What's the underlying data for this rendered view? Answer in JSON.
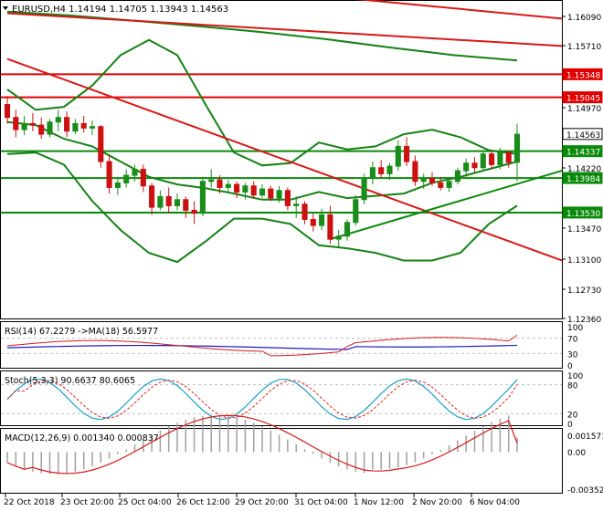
{
  "colors": {
    "bull": "#1a8c1a",
    "bear": "#cc1111",
    "grid_frame": "#000000",
    "hline_red": "#e00000",
    "hline_green": "#0a8a0a",
    "bollinger": "#148214",
    "trend": "#d81818",
    "rsi": "#1c1cc8",
    "rsi_ma": "#d81818",
    "stoch_main": "#1aa0c8",
    "stoch_signal": "#e02020",
    "macd_hist": "#a0a0a0",
    "macd_signal": "#d81818",
    "label_green_bg": "#0a8a0a",
    "label_red_bg": "#e00000",
    "current_bg": "#ffffff"
  },
  "main_header": "EURUSD,H4  1.14194 1.14705 1.13943 1.14563",
  "rsi_header": "RSI(14) 67.2279  ->MA(18) 56.5977",
  "stoch_header": "Stoch(5,3,3) 90.6637 80.6065",
  "macd_header": "MACD(12,26,9) 0.001340 0.000837",
  "price_axis": {
    "ticks": [
      "1.16090",
      "1.15710",
      "1.14970",
      "1.14220",
      "1.13470",
      "1.13100",
      "1.12730",
      "1.12360"
    ],
    "markers": [
      {
        "label": "1.15348",
        "kind": "red"
      },
      {
        "label": "1.15045",
        "kind": "red"
      },
      {
        "label": "1.14563",
        "kind": "current"
      },
      {
        "label": "1.14337",
        "kind": "green"
      },
      {
        "label": "1.13984",
        "kind": "green"
      },
      {
        "label": "1.13530",
        "kind": "green"
      }
    ]
  },
  "rsi_axis": [
    "100",
    "70",
    "30",
    "0"
  ],
  "stoch_axis": [
    "100",
    "80",
    "20",
    "0"
  ],
  "macd_axis": [
    "0.001571",
    "0.00",
    "-0.003525"
  ],
  "time_axis": [
    "22 Oct 2018",
    "23 Oct 20:00",
    "25 Oct 04:00",
    "26 Oct 12:00",
    "29 Oct 20:00",
    "31 Oct 04:00",
    "1 Nov 12:00",
    "2 Nov 20:00",
    "6 Nov 04:00"
  ],
  "chart_data": {
    "type": "candlestick",
    "symbol": "EURUSD",
    "timeframe": "H4",
    "ylim": [
      1.1215,
      1.163
    ],
    "candles": [
      [
        1.1495,
        1.1506,
        1.147,
        1.1478
      ],
      [
        1.1478,
        1.1488,
        1.1452,
        1.1462
      ],
      [
        1.1462,
        1.148,
        1.1455,
        1.147
      ],
      [
        1.147,
        1.1484,
        1.146,
        1.1468
      ],
      [
        1.1468,
        1.1478,
        1.145,
        1.1456
      ],
      [
        1.1456,
        1.1476,
        1.1452,
        1.1472
      ],
      [
        1.1472,
        1.1488,
        1.146,
        1.1478
      ],
      [
        1.1478,
        1.1486,
        1.1452,
        1.146
      ],
      [
        1.146,
        1.1476,
        1.1456,
        1.147
      ],
      [
        1.147,
        1.148,
        1.1458,
        1.1464
      ],
      [
        1.1464,
        1.1474,
        1.1455,
        1.1466
      ],
      [
        1.1466,
        1.1468,
        1.1412,
        1.142
      ],
      [
        1.142,
        1.143,
        1.1378,
        1.1386
      ],
      [
        1.1386,
        1.14,
        1.1376,
        1.1392
      ],
      [
        1.1392,
        1.141,
        1.1386,
        1.1402
      ],
      [
        1.1402,
        1.1416,
        1.1394,
        1.141
      ],
      [
        1.141,
        1.1416,
        1.138,
        1.1388
      ],
      [
        1.1388,
        1.1392,
        1.135,
        1.136
      ],
      [
        1.136,
        1.1382,
        1.1356,
        1.1374
      ],
      [
        1.1374,
        1.1386,
        1.1352,
        1.1362
      ],
      [
        1.1362,
        1.1378,
        1.1356,
        1.137
      ],
      [
        1.137,
        1.1374,
        1.1346,
        1.1356
      ],
      [
        1.1356,
        1.1368,
        1.1338,
        1.1352
      ],
      [
        1.1352,
        1.14,
        1.1348,
        1.1394
      ],
      [
        1.1394,
        1.141,
        1.1386,
        1.1396
      ],
      [
        1.1396,
        1.1402,
        1.1378,
        1.1386
      ],
      [
        1.1386,
        1.1396,
        1.1378,
        1.139
      ],
      [
        1.139,
        1.1394,
        1.1372,
        1.138
      ],
      [
        1.138,
        1.1392,
        1.137,
        1.1388
      ],
      [
        1.1388,
        1.1394,
        1.1372,
        1.1376
      ],
      [
        1.1376,
        1.139,
        1.1372,
        1.1384
      ],
      [
        1.1384,
        1.1388,
        1.1368,
        1.1372
      ],
      [
        1.1372,
        1.1388,
        1.1366,
        1.1382
      ],
      [
        1.1382,
        1.1386,
        1.1356,
        1.1362
      ],
      [
        1.1362,
        1.1374,
        1.1346,
        1.1364
      ],
      [
        1.1364,
        1.1368,
        1.1338,
        1.1344
      ],
      [
        1.1344,
        1.1352,
        1.1328,
        1.1336
      ],
      [
        1.1336,
        1.1358,
        1.133,
        1.135
      ],
      [
        1.135,
        1.1362,
        1.1312,
        1.1318
      ],
      [
        1.1318,
        1.133,
        1.1308,
        1.1322
      ],
      [
        1.1322,
        1.1344,
        1.1316,
        1.134
      ],
      [
        1.134,
        1.1376,
        1.1336,
        1.137
      ],
      [
        1.137,
        1.1404,
        1.1364,
        1.1398
      ],
      [
        1.1398,
        1.142,
        1.139,
        1.1412
      ],
      [
        1.1412,
        1.1422,
        1.1398,
        1.1404
      ],
      [
        1.1404,
        1.1418,
        1.1396,
        1.1414
      ],
      [
        1.1414,
        1.1448,
        1.1408,
        1.144
      ],
      [
        1.144,
        1.1452,
        1.1414,
        1.142
      ],
      [
        1.142,
        1.1428,
        1.1388,
        1.1394
      ],
      [
        1.1394,
        1.1404,
        1.1384,
        1.1398
      ],
      [
        1.1398,
        1.1406,
        1.1388,
        1.1392
      ],
      [
        1.1392,
        1.14,
        1.1382,
        1.1386
      ],
      [
        1.1386,
        1.1398,
        1.138,
        1.1394
      ],
      [
        1.1394,
        1.1412,
        1.139,
        1.1408
      ],
      [
        1.1408,
        1.1424,
        1.14,
        1.1418
      ],
      [
        1.1418,
        1.1426,
        1.1406,
        1.1412
      ],
      [
        1.1412,
        1.1434,
        1.1408,
        1.143
      ],
      [
        1.143,
        1.1434,
        1.141,
        1.1416
      ],
      [
        1.1416,
        1.1438,
        1.141,
        1.1432
      ],
      [
        1.1432,
        1.1434,
        1.1412,
        1.1419
      ],
      [
        1.1419,
        1.147,
        1.1394,
        1.1456
      ]
    ],
    "horizontal_levels": [
      {
        "value": 1.15348,
        "color": "red"
      },
      {
        "value": 1.15045,
        "color": "red"
      },
      {
        "value": 1.14337,
        "color": "green"
      },
      {
        "value": 1.13984,
        "color": "green"
      },
      {
        "value": 1.1353,
        "color": "green"
      }
    ],
    "trendlines": [
      {
        "color": "red",
        "from": [
          0,
          1.1555
        ],
        "to": [
          60,
          1.129
        ]
      },
      {
        "color": "red",
        "from": [
          0,
          1.1615
        ],
        "to": [
          60,
          1.1572
        ]
      },
      {
        "color": "red",
        "from": [
          35,
          1.164
        ],
        "to": [
          60,
          1.1608
        ]
      },
      {
        "color": "green",
        "from": [
          38,
          1.1318
        ],
        "to": [
          60,
          1.1408
        ]
      }
    ],
    "bollinger": {
      "upper": [
        1.1515,
        1.1488,
        1.1492,
        1.152,
        1.156,
        1.158,
        1.156,
        1.1495,
        1.1432,
        1.1415,
        1.1418,
        1.1445,
        1.1436,
        1.144,
        1.1456,
        1.1462,
        1.1452,
        1.1435,
        1.143
      ],
      "lower": [
        1.143,
        1.1432,
        1.1416,
        1.1368,
        1.133,
        1.13,
        1.1288,
        1.1315,
        1.1345,
        1.1345,
        1.1338,
        1.131,
        1.1306,
        1.13,
        1.129,
        1.129,
        1.13,
        1.1338,
        1.1362
      ],
      "middle": [
        1.1472,
        1.1468,
        1.145,
        1.144,
        1.142,
        1.14,
        1.139,
        1.1385,
        1.1378,
        1.137,
        1.137,
        1.138,
        1.1372,
        1.1375,
        1.1378,
        1.1392,
        1.14,
        1.141,
        1.142
      ],
      "long_mid": [
        1.1617,
        1.1612,
        1.1605,
        1.1598,
        1.159,
        1.1581,
        1.157,
        1.156,
        1.1553
      ]
    },
    "rsi": {
      "value": 67.2279,
      "ma": 56.5977,
      "ylim": [
        0,
        100
      ]
    },
    "stochastic": {
      "main": 90.6637,
      "signal": 80.6065,
      "ylim": [
        0,
        100
      ]
    },
    "macd": {
      "main": 0.00134,
      "signal": 0.000837,
      "ylim": [
        -0.003525,
        0.001571
      ]
    }
  }
}
